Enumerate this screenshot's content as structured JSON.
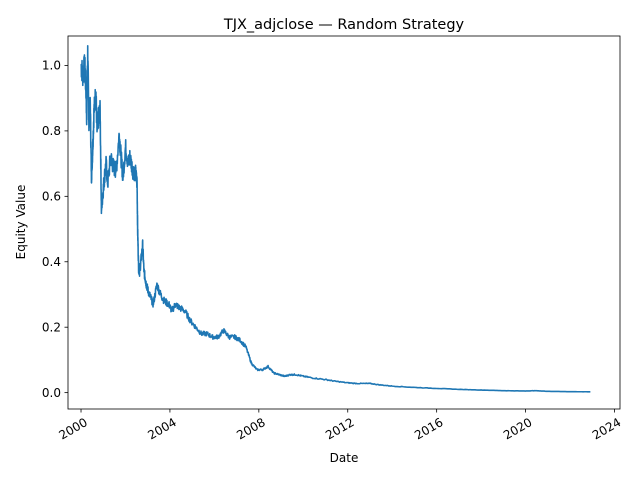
{
  "chart_data": {
    "type": "line",
    "title": "TJX_adjclose — Random Strategy",
    "xlabel": "Date",
    "ylabel": "Equity Value",
    "xlim": [
      "1999-06-01",
      "2024-04-01"
    ],
    "ylim": [
      -0.05,
      1.09
    ],
    "grid": false,
    "legend": "none",
    "x_ticks": [
      "2000",
      "2004",
      "2008",
      "2012",
      "2016",
      "2020",
      "2024"
    ],
    "y_ticks": [
      "0.0",
      "0.2",
      "0.4",
      "0.6",
      "0.8",
      "1.0"
    ],
    "line_color": "#1f77b4",
    "series": [
      {
        "x": [
          "2000-01-03",
          "2000-02-01",
          "2000-03-01",
          "2000-03-15",
          "2000-04-03",
          "2000-04-20",
          "2000-05-10",
          "2000-06-01",
          "2000-06-20",
          "2000-07-10",
          "2000-08-01",
          "2000-09-01",
          "2000-09-20",
          "2000-10-15",
          "2000-11-10",
          "2000-12-01",
          "2000-12-20",
          "2001-01-15",
          "2001-02-15",
          "2001-03-15",
          "2001-05-01",
          "2001-06-15",
          "2001-08-01",
          "2001-09-20",
          "2001-10-20",
          "2001-11-20",
          "2002-01-01",
          "2002-02-15",
          "2002-03-15",
          "2002-05-01",
          "2002-06-15",
          "2002-07-10",
          "2002-07-20",
          "2002-08-05",
          "2002-08-20",
          "2002-09-10",
          "2002-10-10",
          "2002-11-01",
          "2002-11-20",
          "2002-12-10",
          "2003-01-10",
          "2003-02-20",
          "2003-04-01",
          "2003-06-01",
          "2003-08-01",
          "2003-10-01",
          "2003-12-15",
          "2004-02-01",
          "2004-04-01",
          "2004-06-01",
          "2004-09-01",
          "2004-12-01",
          "2005-03-01",
          "2005-06-01",
          "2005-09-01",
          "2005-12-01",
          "2006-03-01",
          "2006-06-01",
          "2006-09-01",
          "2006-12-01",
          "2007-03-01",
          "2007-06-01",
          "2007-09-01",
          "2007-12-01",
          "2008-03-01",
          "2008-06-01",
          "2008-09-01",
          "2008-12-01",
          "2009-03-01",
          "2009-06-01",
          "2009-09-01",
          "2010-01-01",
          "2010-06-01",
          "2011-01-01",
          "2011-06-01",
          "2012-01-01",
          "2012-06-01",
          "2013-01-01",
          "2013-06-01",
          "2014-01-01",
          "2015-01-01",
          "2016-01-01",
          "2017-01-01",
          "2018-01-01",
          "2019-01-01",
          "2020-01-01",
          "2020-06-01",
          "2021-01-01",
          "2022-01-01",
          "2022-12-01"
        ],
        "y": [
          1.0,
          0.97,
          1.0,
          0.96,
          0.85,
          1.04,
          0.82,
          0.88,
          0.66,
          0.74,
          0.86,
          0.92,
          0.8,
          0.84,
          0.86,
          0.56,
          0.6,
          0.65,
          0.7,
          0.64,
          0.72,
          0.69,
          0.68,
          0.79,
          0.72,
          0.66,
          0.75,
          0.7,
          0.72,
          0.68,
          0.67,
          0.64,
          0.49,
          0.38,
          0.37,
          0.4,
          0.45,
          0.37,
          0.35,
          0.33,
          0.31,
          0.29,
          0.27,
          0.33,
          0.3,
          0.28,
          0.27,
          0.25,
          0.27,
          0.26,
          0.25,
          0.22,
          0.2,
          0.18,
          0.18,
          0.17,
          0.17,
          0.19,
          0.17,
          0.17,
          0.16,
          0.14,
          0.09,
          0.07,
          0.07,
          0.08,
          0.06,
          0.055,
          0.05,
          0.055,
          0.055,
          0.05,
          0.045,
          0.04,
          0.035,
          0.03,
          0.028,
          0.028,
          0.024,
          0.02,
          0.016,
          0.013,
          0.01,
          0.008,
          0.006,
          0.005,
          0.006,
          0.004,
          0.003,
          0.0025
        ]
      }
    ]
  }
}
